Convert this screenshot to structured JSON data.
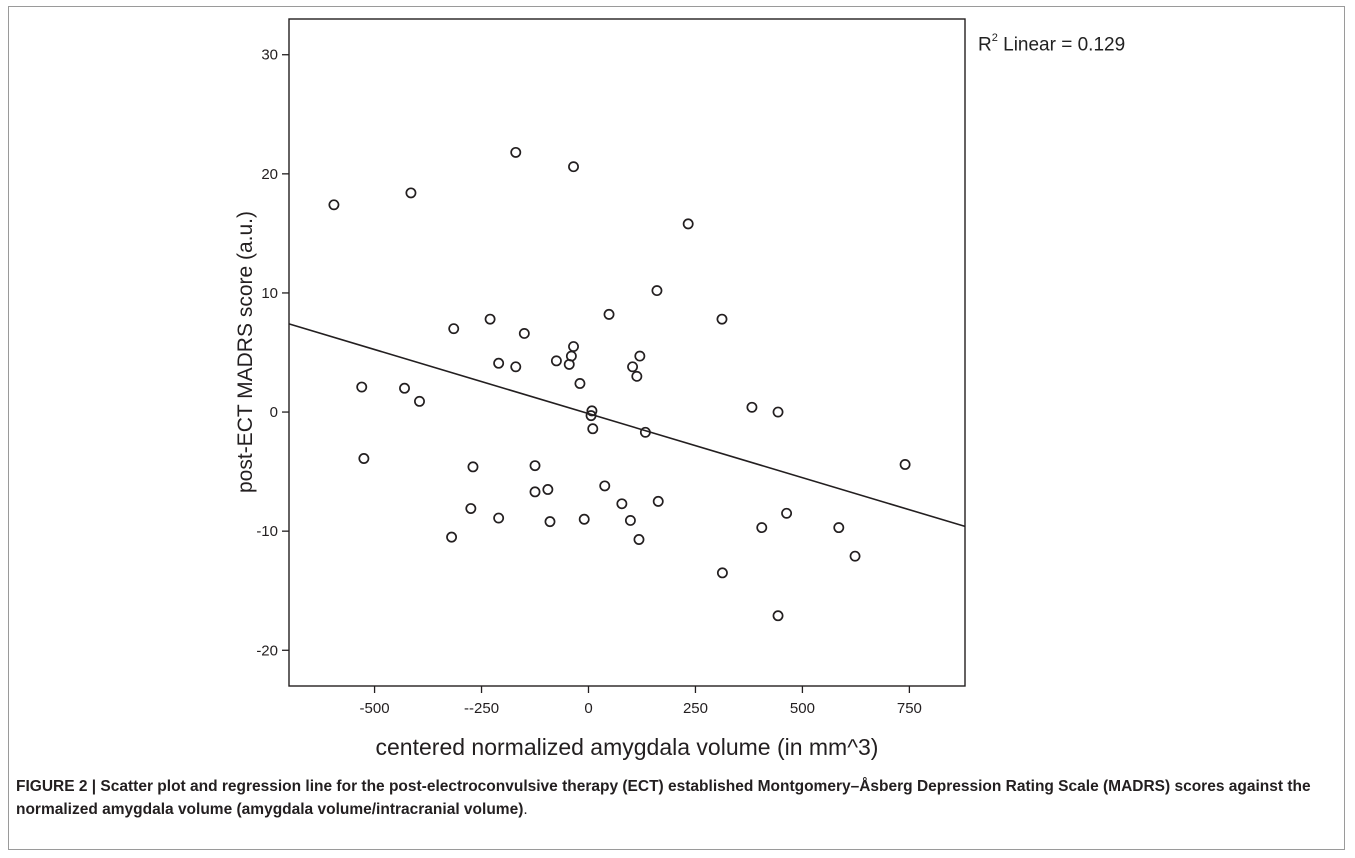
{
  "chart_data": {
    "type": "scatter",
    "xlabel": "centered normalized amygdala volume (in mm^3)",
    "ylabel": "post-ECT MADRS score (a.u.)",
    "xlim": [
      -700,
      880
    ],
    "ylim": [
      -23,
      33
    ],
    "x_ticks": [
      -500,
      -250,
      0,
      250,
      500,
      750
    ],
    "x_tick_labels": [
      "-500",
      "--250",
      "0",
      "250",
      "500",
      "750"
    ],
    "y_ticks": [
      -20,
      -10,
      0,
      10,
      20,
      30
    ],
    "y_tick_labels": [
      "-20",
      "-10",
      "0",
      "10",
      "20",
      "30"
    ],
    "grid": false,
    "points": [
      {
        "x": -595,
        "y": 17.4
      },
      {
        "x": -415,
        "y": 18.4
      },
      {
        "x": -170,
        "y": 21.8
      },
      {
        "x": -35,
        "y": 20.6
      },
      {
        "x": 233,
        "y": 15.8
      },
      {
        "x": 160,
        "y": 10.2
      },
      {
        "x": 312,
        "y": 7.8
      },
      {
        "x": -315,
        "y": 7.0
      },
      {
        "x": -230,
        "y": 7.8
      },
      {
        "x": -150,
        "y": 6.6
      },
      {
        "x": 48,
        "y": 8.2
      },
      {
        "x": -35,
        "y": 5.5
      },
      {
        "x": -40,
        "y": 4.7
      },
      {
        "x": 120,
        "y": 4.7
      },
      {
        "x": -75,
        "y": 4.3
      },
      {
        "x": -45,
        "y": 4.0
      },
      {
        "x": -210,
        "y": 4.1
      },
      {
        "x": -170,
        "y": 3.8
      },
      {
        "x": 103,
        "y": 3.8
      },
      {
        "x": 113,
        "y": 3.0
      },
      {
        "x": -20,
        "y": 2.4
      },
      {
        "x": -530,
        "y": 2.1
      },
      {
        "x": -430,
        "y": 2.0
      },
      {
        "x": -395,
        "y": 0.9
      },
      {
        "x": 8,
        "y": 0.1
      },
      {
        "x": 6,
        "y": -0.3
      },
      {
        "x": 382,
        "y": 0.4
      },
      {
        "x": 443,
        "y": 0.0
      },
      {
        "x": 10,
        "y": -1.4
      },
      {
        "x": 133,
        "y": -1.7
      },
      {
        "x": -525,
        "y": -3.9
      },
      {
        "x": -270,
        "y": -4.6
      },
      {
        "x": -125,
        "y": -4.5
      },
      {
        "x": 740,
        "y": -4.4
      },
      {
        "x": 38,
        "y": -6.2
      },
      {
        "x": -95,
        "y": -6.5
      },
      {
        "x": -125,
        "y": -6.7
      },
      {
        "x": 78,
        "y": -7.7
      },
      {
        "x": 163,
        "y": -7.5
      },
      {
        "x": -275,
        "y": -8.1
      },
      {
        "x": 463,
        "y": -8.5
      },
      {
        "x": -210,
        "y": -8.9
      },
      {
        "x": -90,
        "y": -9.2
      },
      {
        "x": -10,
        "y": -9.0
      },
      {
        "x": 98,
        "y": -9.1
      },
      {
        "x": 405,
        "y": -9.7
      },
      {
        "x": 585,
        "y": -9.7
      },
      {
        "x": -320,
        "y": -10.5
      },
      {
        "x": 118,
        "y": -10.7
      },
      {
        "x": 623,
        "y": -12.1
      },
      {
        "x": 313,
        "y": -13.5
      },
      {
        "x": 443,
        "y": -17.1
      }
    ],
    "regression_line": {
      "x": [
        -700,
        880
      ],
      "y": [
        7.4,
        -9.6
      ]
    },
    "annotation": {
      "base": "R",
      "sup": "2",
      "text": " Linear = 0.129"
    }
  },
  "caption": {
    "bold_text": "FIGURE 2 | Scatter plot and regression line for the post-electroconvulsive therapy (ECT) established Montgomery–Åsberg Depression Rating Scale (MADRS) scores against the normalized amygdala volume (amygdala volume/intracranial volume)",
    "end_text": "."
  }
}
